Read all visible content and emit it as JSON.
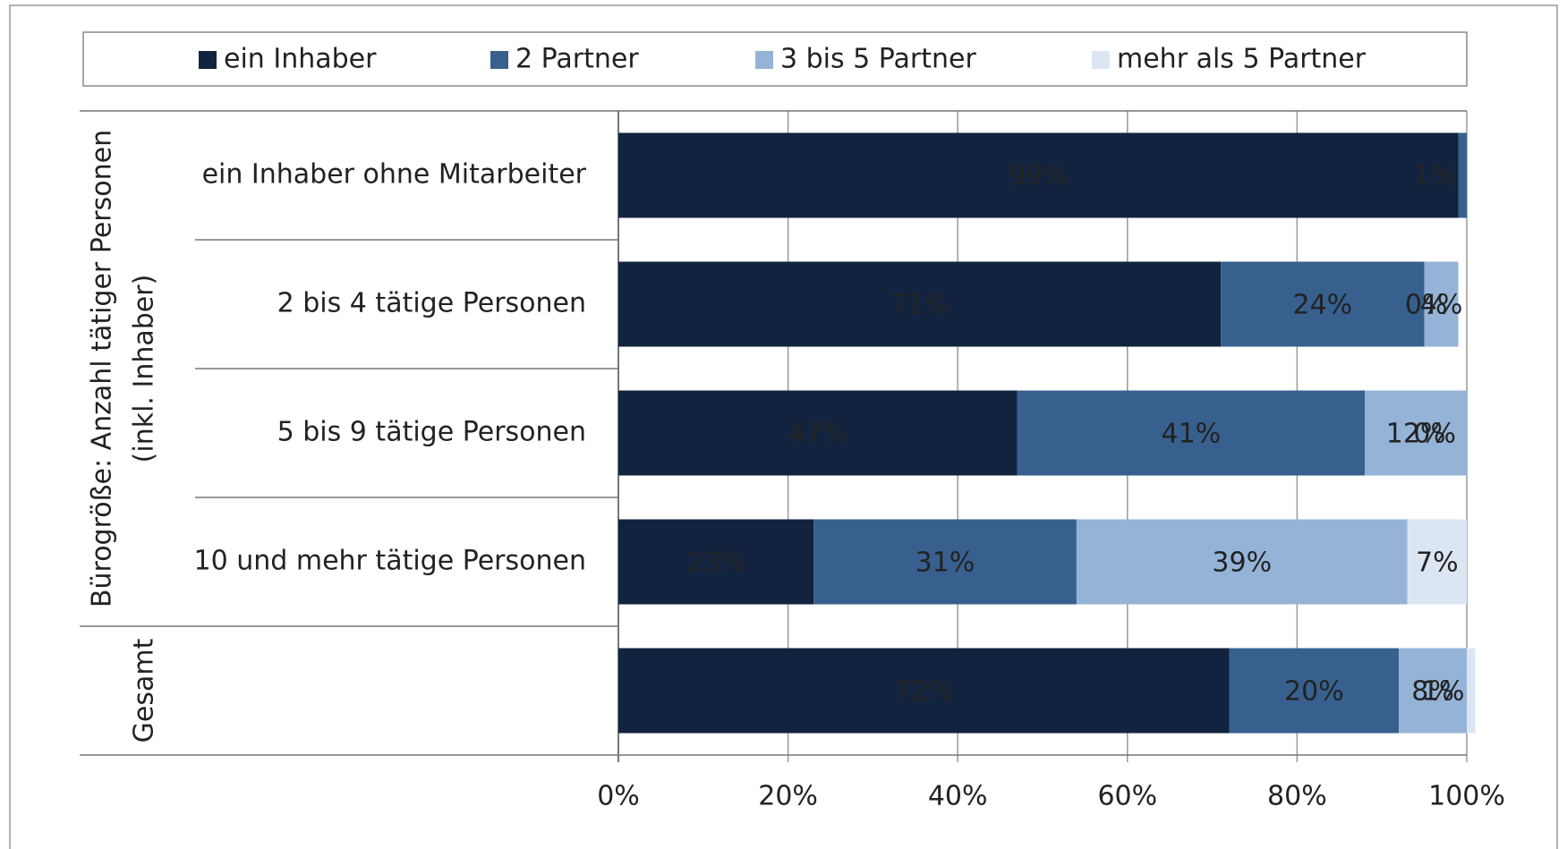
{
  "chart_data": {
    "type": "stacked_barh",
    "categories": [
      "ein Inhaber ohne Mitarbeiter",
      "2 bis 4 tätige Personen",
      "5 bis 9 tätige Personen",
      "10 und mehr tätige Personen",
      null
    ],
    "group_labels": [
      [
        "Bürogröße: Anzahl tätiger Personen",
        "(inkl. Inhaber)"
      ],
      [
        "Gesamt"
      ]
    ],
    "series": [
      {
        "name": "ein Inhaber",
        "color": "#12233f",
        "values": [
          99,
          71,
          47,
          23,
          72
        ],
        "value_labels": [
          "99%",
          "71%",
          "47%",
          "23%",
          "72%"
        ]
      },
      {
        "name": "2 Partner",
        "color": "#37608f",
        "values": [
          1,
          24,
          41,
          31,
          20
        ],
        "value_labels": [
          "1%",
          "24%",
          "41%",
          "31%",
          "20%"
        ]
      },
      {
        "name": "3 bis 5 Partner",
        "color": "#95b3d7",
        "values": [
          null,
          4,
          12,
          39,
          8
        ],
        "value_labels": [
          null,
          "4%",
          "12%",
          "39%",
          "8%"
        ]
      },
      {
        "name": "mehr als 5 Partner",
        "color": "#dce6f2",
        "values": [
          null,
          0,
          0,
          7,
          1
        ],
        "value_labels": [
          null,
          "0%",
          "0%",
          "7%",
          "1%"
        ]
      }
    ],
    "xlim": [
      0,
      100
    ],
    "xticks": [
      {
        "value": 0,
        "label": "0%"
      },
      {
        "value": 20,
        "label": "20%"
      },
      {
        "value": 40,
        "label": "40%"
      },
      {
        "value": 60,
        "label": "60%"
      },
      {
        "value": 80,
        "label": "80%"
      },
      {
        "value": 100,
        "label": "100%"
      }
    ],
    "grid": true,
    "legend": "top"
  }
}
